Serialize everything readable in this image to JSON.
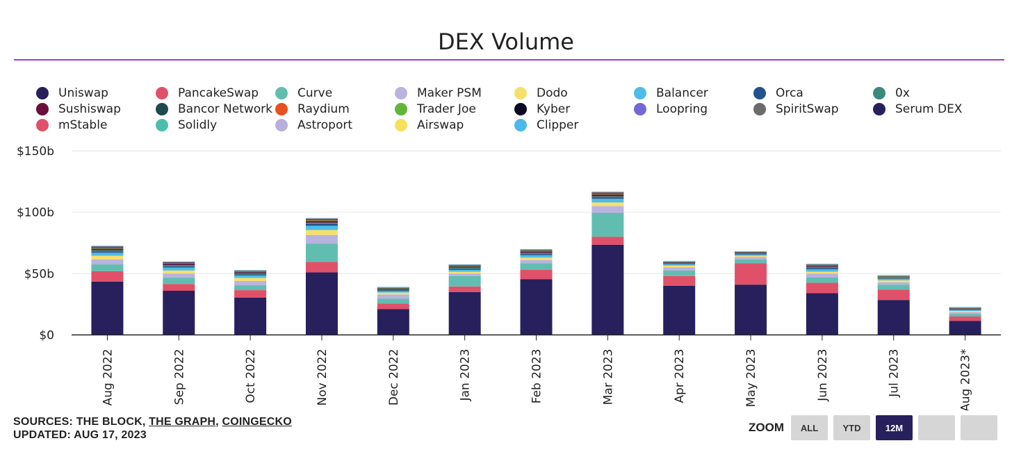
{
  "title": "DEX Volume",
  "legend": [
    [
      "Uniswap",
      "Sushiswap",
      "mStable"
    ],
    [
      "PancakeSwap",
      "Bancor Network",
      "Solidly"
    ],
    [
      "Curve",
      "Raydium",
      "Astroport"
    ],
    [
      "Maker PSM",
      "Trader Joe",
      "Airswap"
    ],
    [
      "Dodo",
      "Kyber",
      "Clipper"
    ],
    [
      "Balancer",
      "Loopring"
    ],
    [
      "Orca",
      "SpiritSwap"
    ],
    [
      "0x",
      "Serum DEX"
    ]
  ],
  "colors": {
    "Uniswap": "#28205c",
    "Sushiswap": "#6b0f3a",
    "mStable": "#e05169",
    "PancakeSwap": "#e05169",
    "Bancor Network": "#1d4a4f",
    "Solidly": "#4bbfac",
    "Curve": "#62bdb1",
    "Raydium": "#e9501f",
    "Astroport": "#b7b0dc",
    "Maker PSM": "#b9b3e0",
    "Trader Joe": "#61b637",
    "Airswap": "#f7e15b",
    "Dodo": "#f7df6c",
    "Kyber": "#0b0826",
    "Clipper": "#4db8ec",
    "Balancer": "#4dbde7",
    "Loopring": "#7368d4",
    "Orca": "#23528c",
    "SpiritSwap": "#6b6b6b",
    "0x": "#3a8a7b",
    "Serum DEX": "#28205c"
  },
  "chart_data": {
    "type": "bar",
    "stacked": true,
    "title": "DEX Volume",
    "categories": [
      "Aug 2022",
      "Sep 2022",
      "Oct 2022",
      "Nov 2022",
      "Dec 2022",
      "Jan 2023",
      "Feb 2023",
      "Mar 2023",
      "Apr 2023",
      "May 2023",
      "Jun 2023",
      "Jul 2023",
      "Aug 2023*"
    ],
    "y_ticks": [
      "$0",
      "$50b",
      "$100b",
      "$150b"
    ],
    "ylim": [
      0,
      150
    ],
    "grid": true,
    "series": [
      {
        "name": "Uniswap",
        "values": [
          43.5,
          36,
          30.5,
          51,
          21,
          35,
          45.5,
          73.5,
          40,
          41,
          34,
          28.5,
          11.5
        ]
      },
      {
        "name": "PancakeSwap",
        "values": [
          8.5,
          5.5,
          6,
          8.5,
          4.5,
          4.5,
          7.5,
          6.5,
          8,
          17.5,
          8.5,
          8.5,
          3.5
        ]
      },
      {
        "name": "Curve",
        "values": [
          5.5,
          5,
          4,
          15,
          4,
          8.5,
          5.5,
          19.5,
          4.5,
          3,
          4.5,
          4,
          2
        ]
      },
      {
        "name": "Maker PSM",
        "values": [
          4,
          3.5,
          3.5,
          7,
          3.5,
          2,
          2.5,
          5.5,
          2.5,
          2,
          3,
          2,
          1.5
        ]
      },
      {
        "name": "Dodo",
        "values": [
          3,
          2.5,
          2.5,
          4,
          1.5,
          1.5,
          2,
          3,
          1.5,
          1,
          1.5,
          1.5,
          1
        ]
      },
      {
        "name": "Balancer",
        "values": [
          2.5,
          2.5,
          2,
          3.5,
          1.2,
          1.5,
          2,
          3,
          1,
          1,
          2,
          1.2,
          0.8
        ]
      },
      {
        "name": "Orca",
        "values": [
          1,
          1,
          0.8,
          1.5,
          0.6,
          1,
          1,
          1,
          0.5,
          0.5,
          1,
          0.4,
          0.4
        ]
      },
      {
        "name": "0x",
        "values": [
          1,
          1,
          0.8,
          1,
          0.6,
          1,
          1,
          1,
          0.5,
          0.5,
          1,
          0.5,
          0.4
        ]
      },
      {
        "name": "Sushiswap",
        "values": [
          1,
          0.8,
          0.8,
          1,
          0.5,
          0.6,
          0.8,
          1,
          0.4,
          0.4,
          0.6,
          0.3,
          0.3
        ]
      },
      {
        "name": "Bancor Network",
        "values": [
          0.5,
          0.4,
          0.4,
          0.5,
          0.3,
          0.4,
          0.4,
          0.5,
          0.2,
          0.2,
          0.4,
          0.2,
          0.2
        ]
      },
      {
        "name": "Raydium",
        "values": [
          0.5,
          0.3,
          0.3,
          0.5,
          0.2,
          0.3,
          0.3,
          0.4,
          0.1,
          0.1,
          0.2,
          0.1,
          0.1
        ]
      },
      {
        "name": "Trader Joe",
        "values": [
          0.2,
          0.2,
          0.2,
          0.3,
          0.1,
          0.2,
          0.2,
          0.3,
          0.1,
          0.1,
          0.2,
          0.6,
          0.1
        ]
      },
      {
        "name": "Kyber",
        "values": [
          0.5,
          0.3,
          0.3,
          0.5,
          0.3,
          0.3,
          0.4,
          0.5,
          0.1,
          0.1,
          0.3,
          0.1,
          0.1
        ]
      },
      {
        "name": "Loopring",
        "values": [
          0.2,
          0.2,
          0.1,
          0.2,
          0.1,
          0.1,
          0.2,
          0.3,
          0.1,
          0.1,
          0.1,
          0.1,
          0.1
        ]
      },
      {
        "name": "SpiritSwap",
        "values": [
          0.1,
          0.1,
          0.1,
          0.1,
          0.1,
          0.1,
          0.1,
          0.1,
          0.1,
          0.1,
          0.1,
          0.1,
          0.1
        ]
      },
      {
        "name": "Serum DEX",
        "values": [
          0.2,
          0.1,
          0.1,
          0.2,
          0.1,
          0.1,
          0.1,
          0.2,
          0.1,
          0.1,
          0.1,
          0.1,
          0.1
        ]
      },
      {
        "name": "mStable",
        "values": [
          0.1,
          0.1,
          0.1,
          0.1,
          0.1,
          0.1,
          0.1,
          0.1,
          0.1,
          0.1,
          0.1,
          0.1,
          0.1
        ]
      },
      {
        "name": "Solidly",
        "values": [
          0.1,
          0.1,
          0.1,
          0.1,
          0.1,
          0.1,
          0.1,
          0.1,
          0.1,
          0.1,
          0.1,
          0.1,
          0.1
        ]
      },
      {
        "name": "Astroport",
        "values": [
          0.1,
          0.1,
          0.1,
          0.1,
          0.1,
          0.1,
          0.1,
          0.1,
          0.1,
          0.1,
          0.1,
          0.1,
          0.1
        ]
      },
      {
        "name": "Airswap",
        "values": [
          0.1,
          0.1,
          0.1,
          0.1,
          0.1,
          0.1,
          0.1,
          0.1,
          0.1,
          0.1,
          0.1,
          0.1,
          0.1
        ]
      },
      {
        "name": "Clipper",
        "values": [
          0.1,
          0.1,
          0.1,
          0.1,
          0.1,
          0.1,
          0.1,
          0.1,
          0.1,
          0.1,
          0.1,
          0.1,
          0.1
        ]
      }
    ]
  },
  "sources": {
    "prefix": "SOURCES: THE BLOCK, ",
    "link1": "THE GRAPH",
    "sep": ", ",
    "link2": "COINGECKO",
    "updated": "UPDATED: AUG 17, 2023"
  },
  "zoom": {
    "label": "ZOOM",
    "buttons": [
      "ALL",
      "YTD",
      "12M",
      "",
      ""
    ],
    "active": "12M"
  }
}
